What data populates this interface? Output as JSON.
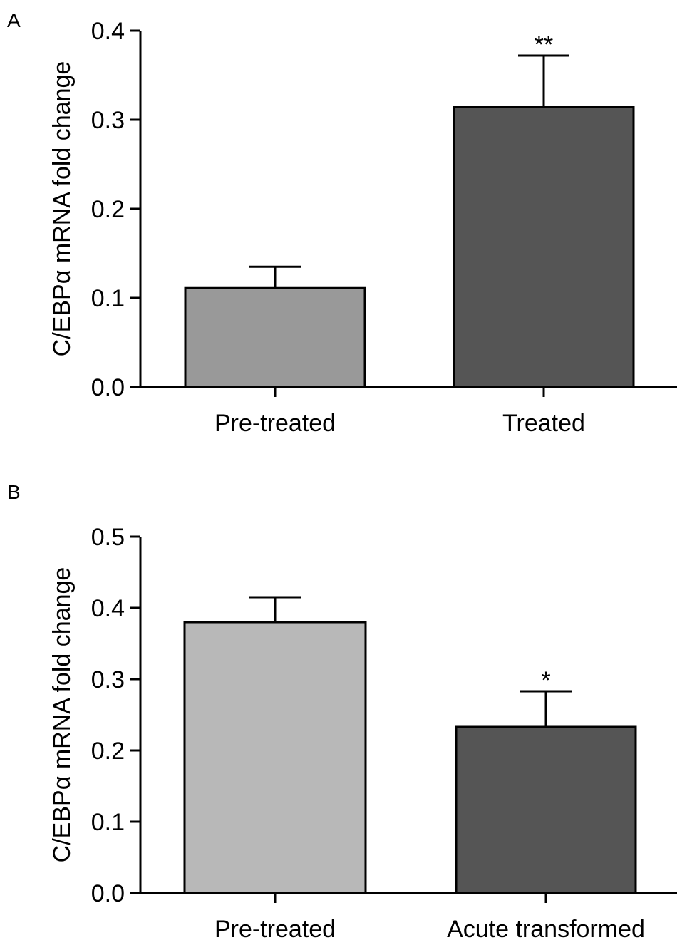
{
  "chart_data": [
    {
      "panel": "A",
      "type": "bar",
      "ylabel": "C/EBPα mRNA fold change",
      "ylim": [
        0,
        0.4
      ],
      "yticks": [
        "0.0",
        "0.1",
        "0.2",
        "0.3",
        "0.4"
      ],
      "categories": [
        "Pre-treated",
        "Treated"
      ],
      "values": [
        0.111,
        0.314
      ],
      "errors": [
        0.024,
        0.058
      ],
      "significance": [
        "",
        "**"
      ],
      "colors": [
        "#999999",
        "#555555"
      ]
    },
    {
      "panel": "B",
      "type": "bar",
      "ylabel": "C/EBPα mRNA fold change",
      "ylim": [
        0,
        0.5
      ],
      "yticks": [
        "0.0",
        "0.1",
        "0.2",
        "0.3",
        "0.4",
        "0.5"
      ],
      "categories": [
        "Pre-treated",
        "Acute transformed"
      ],
      "values": [
        0.38,
        0.233
      ],
      "errors": [
        0.035,
        0.05
      ],
      "significance": [
        "",
        "*"
      ],
      "colors": [
        "#b8b8b8",
        "#555555"
      ]
    }
  ]
}
